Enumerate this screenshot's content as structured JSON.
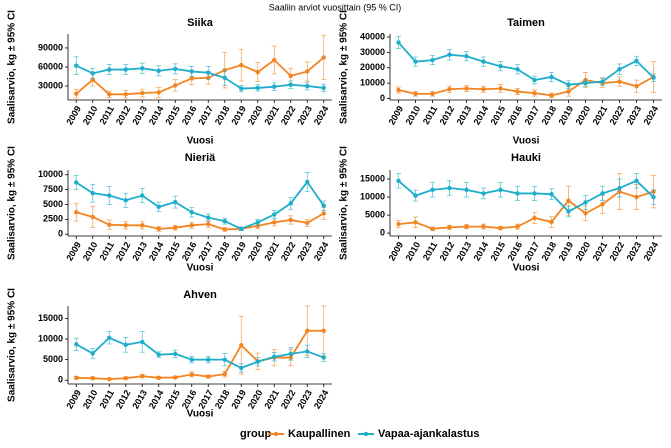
{
  "title": "Saaliin arviot vuosittain (95 % CI)",
  "legend_title": "group",
  "chart_data": [
    {
      "type": "line",
      "title": "Siika",
      "x_label": "Vuosi",
      "y_label": "Saalisarvio, kg ± 95% CI",
      "categories": [
        "2009",
        "2010",
        "2011",
        "2012",
        "2013",
        "2014",
        "2015",
        "2016",
        "2017",
        "2018",
        "2019",
        "2020",
        "2021",
        "2022",
        "2023",
        "2024"
      ],
      "ylim": [
        8000,
        112000
      ],
      "yticks": [
        30000,
        60000,
        90000
      ],
      "series": [
        {
          "name": "Kaupallinen",
          "color": "#f28522",
          "values": [
            18000,
            40000,
            17000,
            17000,
            19000,
            20000,
            31000,
            42000,
            43000,
            55000,
            63000,
            52000,
            71000,
            46000,
            53000,
            75000
          ],
          "errors": [
            7000,
            10000,
            5000,
            6000,
            6000,
            8000,
            9000,
            10000,
            10000,
            28000,
            25000,
            15000,
            22000,
            12000,
            15000,
            35000
          ]
        },
        {
          "name": "Vapaa-ajankalastus",
          "color": "#1eaecb",
          "values": [
            62000,
            50000,
            56000,
            56000,
            58000,
            54000,
            57000,
            53000,
            51000,
            43000,
            26000,
            27000,
            29000,
            32000,
            30000,
            27000
          ],
          "errors": [
            14000,
            8000,
            8000,
            8000,
            8000,
            8000,
            8000,
            8000,
            10000,
            12000,
            5000,
            5000,
            6000,
            6000,
            6000,
            6000
          ]
        }
      ]
    },
    {
      "type": "line",
      "title": "Taimen",
      "x_label": "Vuosi",
      "y_label": "Saalisarvio, kg ± 95% CI",
      "categories": [
        "2009",
        "2010",
        "2011",
        "2012",
        "2013",
        "2014",
        "2015",
        "2016",
        "2017",
        "2018",
        "2019",
        "2020",
        "2021",
        "2022",
        "2023",
        "2024"
      ],
      "ylim": [
        -1000,
        42000
      ],
      "yticks": [
        0,
        10000,
        20000,
        30000,
        40000
      ],
      "series": [
        {
          "name": "Kaupallinen",
          "color": "#f28522",
          "values": [
            5500,
            3000,
            3000,
            6000,
            6500,
            6000,
            6500,
            4500,
            3500,
            2000,
            4500,
            12000,
            10000,
            11000,
            8000,
            14000
          ],
          "errors": [
            2000,
            1500,
            1500,
            2000,
            2000,
            2000,
            2500,
            2000,
            2000,
            1500,
            3000,
            5000,
            3000,
            3000,
            4000,
            10000
          ]
        },
        {
          "name": "Vapaa-ajankalastus",
          "color": "#1eaecb",
          "values": [
            36500,
            24000,
            25000,
            28500,
            27500,
            24000,
            21000,
            19000,
            12000,
            14000,
            9000,
            10000,
            11000,
            19000,
            24500,
            13500
          ],
          "errors": [
            4000,
            3000,
            3000,
            3500,
            3000,
            3000,
            3000,
            3000,
            2500,
            3000,
            2500,
            2000,
            2500,
            3500,
            3000,
            2500
          ]
        }
      ]
    },
    {
      "type": "line",
      "title": "Nieriä",
      "x_label": "Vuosi",
      "y_label": "Saalisarvio, kg ± 95% CI",
      "categories": [
        "2009",
        "2010",
        "2011",
        "2012",
        "2013",
        "2014",
        "2015",
        "2016",
        "2017",
        "2018",
        "2019",
        "2020",
        "2021",
        "2022",
        "2023",
        "2024"
      ],
      "ylim": [
        -300,
        10800
      ],
      "yticks": [
        0,
        2500,
        5000,
        7500,
        10000
      ],
      "series": [
        {
          "name": "Kaupallinen",
          "color": "#f28522",
          "values": [
            3700,
            2900,
            1600,
            1500,
            1500,
            900,
            1100,
            1500,
            1700,
            800,
            900,
            1400,
            2000,
            2400,
            1900,
            3500
          ],
          "errors": [
            1500,
            1800,
            800,
            600,
            600,
            400,
            400,
            500,
            600,
            300,
            300,
            500,
            600,
            700,
            600,
            1000
          ]
        },
        {
          "name": "Vapaa-ajankalastus",
          "color": "#1eaecb",
          "values": [
            8700,
            6900,
            6500,
            5700,
            6500,
            4600,
            5400,
            3700,
            2800,
            2200,
            900,
            2000,
            3300,
            5200,
            8800,
            4800
          ],
          "errors": [
            1200,
            1500,
            1500,
            1200,
            1200,
            800,
            1000,
            800,
            600,
            500,
            300,
            500,
            700,
            1000,
            1600,
            800
          ]
        }
      ]
    },
    {
      "type": "line",
      "title": "Hauki",
      "x_label": "Vuosi",
      "y_label": "Saalisarvio, kg ± 95% CI",
      "categories": [
        "2009",
        "2010",
        "2011",
        "2012",
        "2013",
        "2014",
        "2015",
        "2016",
        "2017",
        "2018",
        "2019",
        "2020",
        "2021",
        "2022",
        "2023",
        "2024"
      ],
      "ylim": [
        -800,
        17500
      ],
      "yticks": [
        0,
        5000,
        10000,
        15000
      ],
      "series": [
        {
          "name": "Kaupallinen",
          "color": "#f28522",
          "values": [
            2500,
            3000,
            1200,
            1600,
            1800,
            1800,
            1400,
            1800,
            4200,
            3100,
            9000,
            5500,
            8000,
            11500,
            10000,
            11500
          ],
          "errors": [
            1000,
            1500,
            500,
            600,
            600,
            700,
            500,
            700,
            1500,
            1500,
            4000,
            2000,
            2500,
            5000,
            3500,
            4500
          ]
        },
        {
          "name": "Vapaa-ajankalastus",
          "color": "#1eaecb",
          "values": [
            14500,
            10400,
            12000,
            12500,
            12000,
            11000,
            12000,
            11000,
            11000,
            10800,
            6000,
            8500,
            11000,
            12500,
            14500,
            10000
          ],
          "errors": [
            2000,
            1500,
            2000,
            2000,
            2000,
            1500,
            2000,
            2000,
            2000,
            1500,
            1500,
            2000,
            2000,
            2500,
            2000,
            2000
          ]
        }
      ]
    },
    {
      "type": "line",
      "title": "Ahven",
      "x_label": "Vuosi",
      "y_label": "Saalisarvio, kg ± 95% CI",
      "categories": [
        "2009",
        "2010",
        "2011",
        "2012",
        "2013",
        "2014",
        "2015",
        "2016",
        "2017",
        "2018",
        "2019",
        "2020",
        "2021",
        "2022",
        "2023",
        "2024"
      ],
      "ylim": [
        -900,
        18000
      ],
      "yticks": [
        0,
        5000,
        10000,
        15000
      ],
      "series": [
        {
          "name": "Kaupallinen",
          "color": "#f28522",
          "values": [
            600,
            500,
            300,
            500,
            1000,
            600,
            700,
            1400,
            900,
            1500,
            8500,
            4600,
            5500,
            5500,
            12000,
            12000
          ],
          "errors": [
            300,
            300,
            200,
            300,
            400,
            300,
            300,
            600,
            400,
            700,
            7000,
            2000,
            2000,
            2000,
            6000,
            6000
          ]
        },
        {
          "name": "Vapaa-ajankalastus",
          "color": "#1eaecb",
          "values": [
            8700,
            6500,
            10300,
            8600,
            9300,
            6200,
            6400,
            5000,
            5000,
            5000,
            3000,
            4500,
            5700,
            6400,
            7000,
            5500
          ],
          "errors": [
            1500,
            1200,
            1500,
            1800,
            2500,
            700,
            900,
            800,
            800,
            1500,
            1000,
            1000,
            1000,
            1500,
            1500,
            1000
          ]
        }
      ]
    }
  ]
}
